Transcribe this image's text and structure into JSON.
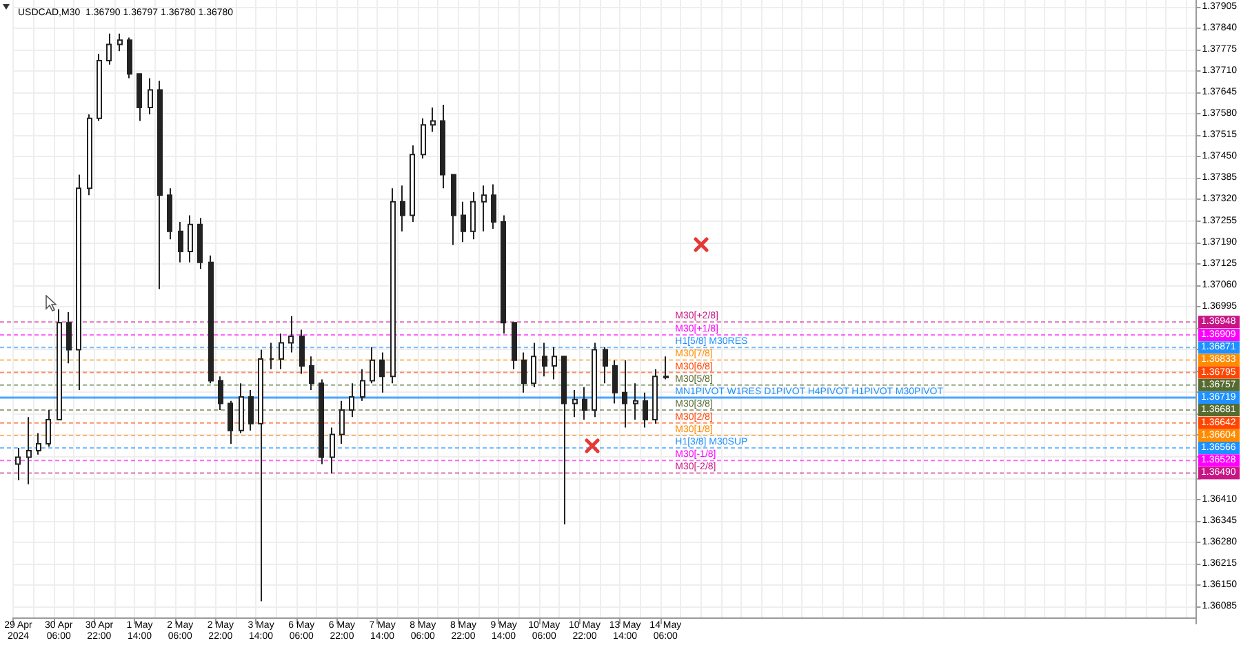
{
  "chart_data": {
    "type": "candlestick",
    "title": "USDCAD,M30  1.36790 1.36797 1.36780 1.36780",
    "color": "#222222",
    "categories": [
      "29 Apr 2024",
      null,
      null,
      null,
      "30 Apr 06:00",
      null,
      null,
      null,
      "30 Apr 22:00",
      null,
      null,
      null,
      "1 May 14:00",
      null,
      null,
      null,
      "2 May 06:00",
      null,
      null,
      null,
      "2 May 22:00",
      null,
      null,
      null,
      "3 May 14:00",
      null,
      null,
      null,
      "6 May 06:00",
      null,
      null,
      null,
      "6 May 22:00",
      null,
      null,
      null,
      "7 May 14:00",
      null,
      null,
      null,
      "8 May 06:00",
      null,
      null,
      null,
      "8 May 22:00",
      null,
      null,
      null,
      "9 May 14:00",
      null,
      null,
      null,
      "10 May 06:00",
      null,
      null,
      null,
      "10 May 22:00",
      null,
      null,
      null,
      "13 May 14:00",
      null,
      null,
      null,
      "14 May 06:00",
      null,
      null,
      null,
      null,
      null,
      null,
      null,
      null,
      null,
      null,
      null,
      null,
      null,
      null,
      null,
      null,
      null,
      null,
      null,
      null,
      null,
      null,
      null,
      null,
      null,
      null,
      null,
      null,
      null,
      null,
      null,
      null,
      null,
      null,
      null,
      null,
      null,
      null,
      null,
      null,
      null,
      null,
      null,
      null,
      null,
      null,
      null,
      null,
      null,
      null,
      null,
      null
    ],
    "ohlc": [
      [
        1.36517,
        1.36566,
        1.36468,
        1.36538
      ],
      [
        1.36538,
        1.3666,
        1.36456,
        1.36558
      ],
      [
        1.36558,
        1.36611,
        1.36546,
        1.36579
      ],
      [
        1.36579,
        1.36681,
        1.3657,
        1.36652
      ],
      [
        1.36652,
        1.36987,
        1.36652,
        1.36946
      ],
      [
        1.36946,
        1.36978,
        1.36823,
        1.36864
      ],
      [
        1.36864,
        1.37395,
        1.36742,
        1.37354
      ],
      [
        1.37354,
        1.37578,
        1.37333,
        1.37566
      ],
      [
        1.37566,
        1.37762,
        1.37558,
        1.37741
      ],
      [
        1.37741,
        1.37823,
        1.37729,
        1.3779
      ],
      [
        1.3779,
        1.37823,
        1.3777,
        1.37803
      ],
      [
        1.37803,
        1.37811,
        1.37688,
        1.37701
      ],
      [
        1.37701,
        1.37701,
        1.37558,
        1.37599
      ],
      [
        1.37599,
        1.37688,
        1.37578,
        1.37652
      ],
      [
        1.37652,
        1.3768,
        1.37048,
        1.37333
      ],
      [
        1.37333,
        1.37354,
        1.37199,
        1.37223
      ],
      [
        1.37223,
        1.37252,
        1.37129,
        1.37162
      ],
      [
        1.37162,
        1.37272,
        1.37129,
        1.37244
      ],
      [
        1.37244,
        1.37264,
        1.37109,
        1.37129
      ],
      [
        1.37129,
        1.3715,
        1.36762,
        1.3677
      ],
      [
        1.3677,
        1.36783,
        1.36681,
        1.36701
      ],
      [
        1.36701,
        1.36709,
        1.36579,
        1.36619
      ],
      [
        1.36619,
        1.36762,
        1.36611,
        1.36721
      ],
      [
        1.36721,
        1.36742,
        1.36619,
        1.3664
      ],
      [
        1.3664,
        1.36864,
        1.36101,
        1.36836
      ],
      [
        1.36836,
        1.36885,
        1.36805,
        1.36836
      ],
      [
        1.36836,
        1.36913,
        1.36805,
        1.36885
      ],
      [
        1.36885,
        1.36966,
        1.36856,
        1.36905
      ],
      [
        1.36905,
        1.36925,
        1.36791,
        1.36815
      ],
      [
        1.36815,
        1.36844,
        1.36742,
        1.36762
      ],
      [
        1.36762,
        1.36774,
        1.36517,
        1.36538
      ],
      [
        1.36538,
        1.36628,
        1.36489,
        1.36607
      ],
      [
        1.36607,
        1.36709,
        1.36579,
        1.36681
      ],
      [
        1.36681,
        1.36762,
        1.3666,
        1.36721
      ],
      [
        1.36721,
        1.36805,
        1.36709,
        1.3677
      ],
      [
        1.3677,
        1.36872,
        1.36762,
        1.36832
      ],
      [
        1.36832,
        1.36856,
        1.36734,
        1.36783
      ],
      [
        1.36783,
        1.37354,
        1.36762,
        1.37313
      ],
      [
        1.37313,
        1.37362,
        1.37223,
        1.37272
      ],
      [
        1.37272,
        1.37484,
        1.37252,
        1.37456
      ],
      [
        1.37456,
        1.37566,
        1.37444,
        1.37546
      ],
      [
        1.37546,
        1.37599,
        1.37525,
        1.37558
      ],
      [
        1.37558,
        1.37607,
        1.37354,
        1.37395
      ],
      [
        1.37395,
        1.37395,
        1.37182,
        1.37272
      ],
      [
        1.37272,
        1.37313,
        1.37191,
        1.37223
      ],
      [
        1.37223,
        1.37342,
        1.37199,
        1.37313
      ],
      [
        1.37313,
        1.37362,
        1.37223,
        1.37333
      ],
      [
        1.37333,
        1.37366,
        1.37231,
        1.37252
      ],
      [
        1.37252,
        1.37272,
        1.36913,
        1.36946
      ],
      [
        1.36946,
        1.36946,
        1.36805,
        1.36832
      ],
      [
        1.36832,
        1.36856,
        1.36734,
        1.36762
      ],
      [
        1.36762,
        1.36885,
        1.3675,
        1.36844
      ],
      [
        1.36844,
        1.36885,
        1.36783,
        1.36815
      ],
      [
        1.36815,
        1.36872,
        1.36774,
        1.36844
      ],
      [
        1.36844,
        1.36844,
        1.36334,
        1.36701
      ],
      [
        1.36701,
        1.36742,
        1.3666,
        1.36713
      ],
      [
        1.36713,
        1.3675,
        1.36652,
        1.36681
      ],
      [
        1.36681,
        1.36885,
        1.3666,
        1.36864
      ],
      [
        1.36864,
        1.36872,
        1.36762,
        1.36815
      ],
      [
        1.36815,
        1.36832,
        1.36701,
        1.36734
      ],
      [
        1.36734,
        1.36832,
        1.36628,
        1.36701
      ],
      [
        1.36701,
        1.36762,
        1.36652,
        1.36709
      ],
      [
        1.36709,
        1.36734,
        1.36628,
        1.36652
      ],
      [
        1.36652,
        1.36805,
        1.3664,
        1.36783
      ],
      [
        1.36783,
        1.36844,
        1.36774,
        1.3678
      ],
      null,
      null,
      null,
      null,
      null,
      null,
      null,
      null,
      null,
      null,
      null,
      null,
      null,
      null,
      null,
      null,
      null,
      null,
      null,
      null,
      null,
      null,
      null,
      null,
      null,
      null,
      null,
      null,
      null,
      null,
      null,
      null,
      null,
      null,
      null,
      null,
      null,
      null,
      null,
      null,
      null,
      null,
      null,
      null,
      null,
      null,
      null,
      null,
      null,
      null,
      null,
      null
    ],
    "ylim": [
      1.36052,
      1.37925
    ],
    "yticks": [
      1.36085,
      {
        "value": 1.3615,
        "label": "1.36150"
      },
      1.36215,
      {
        "value": 1.3628,
        "label": "1.36280"
      },
      1.36345,
      {
        "value": 1.3641,
        "label": "1.36410"
      },
      {
        "value": 1.36475,
        "label": null
      },
      {
        "value": 1.3654,
        "label": null
      },
      {
        "value": 1.36605,
        "label": null
      },
      {
        "value": 1.3667,
        "label": null
      },
      {
        "value": 1.36735,
        "label": null
      },
      {
        "value": 1.368,
        "label": null
      },
      {
        "value": 1.36865,
        "label": null
      },
      {
        "value": 1.3693,
        "label": null
      },
      1.36995,
      {
        "value": 1.3706,
        "label": "1.37060"
      },
      1.37125,
      {
        "value": 1.3719,
        "label": "1.37190"
      },
      1.37255,
      {
        "value": 1.3732,
        "label": "1.37320"
      },
      1.37385,
      {
        "value": 1.3745,
        "label": "1.37450"
      },
      1.37515,
      {
        "value": 1.3758,
        "label": "1.37580"
      },
      1.37645,
      {
        "value": 1.3771,
        "label": "1.37710"
      },
      1.37775,
      {
        "value": 1.3784,
        "label": "1.37840"
      },
      1.37905
    ],
    "grid": true,
    "annotations": [
      {
        "text": "1.36948",
        "y": 1.36948
      },
      {
        "text": "1.36909",
        "y": 1.36909
      },
      {
        "text": "1.36871",
        "y": 1.36871
      },
      {
        "text": "1.36833",
        "y": 1.36833
      },
      {
        "text": "1.36795",
        "y": 1.36795
      },
      {
        "text": "1.36757",
        "y": 1.36757
      },
      {
        "text": "1.36719",
        "y": 1.36719
      },
      {
        "text": "1.36681",
        "y": 1.36681
      },
      {
        "text": "1.36642",
        "y": 1.36642
      },
      {
        "text": "1.36604",
        "y": 1.36604
      },
      {
        "text": "1.36566",
        "y": 1.36566
      },
      {
        "text": "1.36528",
        "y": 1.36528
      },
      {
        "text": "1.36490",
        "y": 1.3649
      }
    ],
    "ref_lines": [
      {
        "axis": "y",
        "value": 1.36948,
        "label": "M30[+2/8]",
        "color": "#c71585",
        "line_style": "dashed"
      },
      {
        "axis": "y",
        "value": 1.36909,
        "label": "M30[+1/8]",
        "color": "#ff00ff",
        "line_style": "dashed"
      },
      {
        "axis": "y",
        "value": 1.36871,
        "label": "H1[5/8] M30RES",
        "color": "#1e90ff",
        "line_style": "dashed"
      },
      {
        "axis": "y",
        "value": 1.36833,
        "label": "M30[7/8]",
        "color": "#ff8c00",
        "line_style": "dashed"
      },
      {
        "axis": "y",
        "value": 1.36795,
        "label": "M30[6/8]",
        "color": "#ff4500",
        "line_style": "dashed"
      },
      {
        "axis": "y",
        "value": 1.36757,
        "label": "M30[5/8]",
        "color": "#556b2f",
        "line_style": "dashed"
      },
      {
        "axis": "y",
        "value": 1.36719,
        "label": "MN1PIVOT W1RES D1PIVOT H4PIVOT H1PIVOT M30PIVOT",
        "color": "#1e90ff",
        "line_style": "solid"
      },
      {
        "axis": "y",
        "value": 1.36681,
        "label": "M30[3/8]",
        "color": "#556b2f",
        "line_style": "dashed"
      },
      {
        "axis": "y",
        "value": 1.36642,
        "label": "M30[2/8]",
        "color": "#ff4500",
        "line_style": "dashed"
      },
      {
        "axis": "y",
        "value": 1.36604,
        "label": "M30[1/8]",
        "color": "#ff8c00",
        "line_style": "dashed"
      },
      {
        "axis": "y",
        "value": 1.36566,
        "label": "H1[3/8] M30SUP",
        "color": "#1e90ff",
        "line_style": "dashed"
      },
      {
        "axis": "y",
        "value": 1.36528,
        "label": "M30[-1/8]",
        "color": "#ff00ff",
        "line_style": "dashed"
      },
      {
        "axis": "y",
        "value": 1.3649,
        "label": "M30[-2/8]",
        "color": "#c71585",
        "line_style": "dashed"
      }
    ]
  }
}
